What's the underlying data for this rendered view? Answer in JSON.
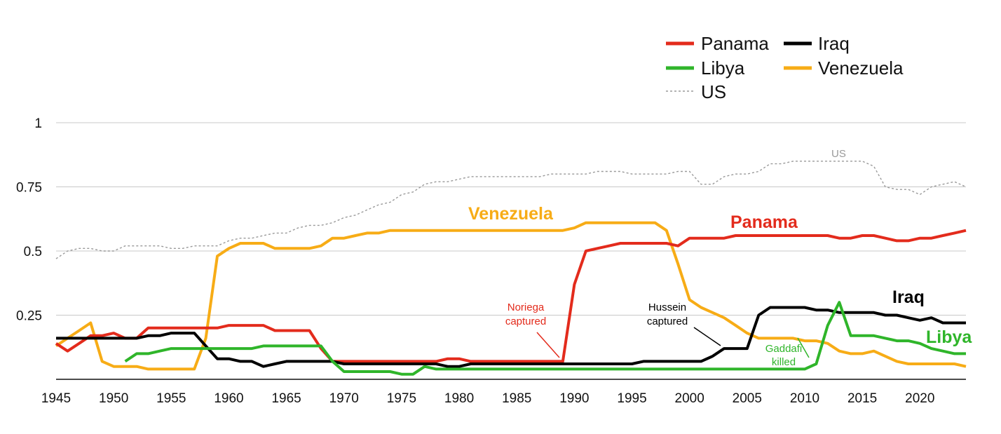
{
  "chart_data": {
    "type": "line",
    "x_ticks": [
      "1945",
      "1950",
      "1955",
      "1960",
      "1965",
      "1970",
      "1975",
      "1980",
      "1985",
      "1990",
      "1995",
      "2000",
      "2005",
      "2010",
      "2015",
      "2020"
    ],
    "y_ticks": [
      "1",
      "0.75",
      "0.5",
      "0.25"
    ],
    "xlim": [
      1945,
      2024
    ],
    "ylim": [
      0,
      1
    ],
    "grid": true,
    "legend_placement": "top-right",
    "colors": {
      "panama": "#e32b1c",
      "iraq": "#000000",
      "libya": "#2fb52a",
      "venezuela": "#f7ac16",
      "us": "#9a9a9a"
    },
    "legend": [
      {
        "key": "panama",
        "label": "Panama"
      },
      {
        "key": "iraq",
        "label": "Iraq"
      },
      {
        "key": "libya",
        "label": "Libya"
      },
      {
        "key": "venezuela",
        "label": "Venezuela"
      },
      {
        "key": "us",
        "label": "US"
      }
    ],
    "series": [
      {
        "key": "us",
        "name": "US",
        "dashed": true,
        "x": [
          1945,
          1946,
          1947,
          1948,
          1949,
          1950,
          1951,
          1952,
          1953,
          1954,
          1955,
          1956,
          1957,
          1958,
          1959,
          1960,
          1961,
          1962,
          1963,
          1964,
          1965,
          1966,
          1967,
          1968,
          1969,
          1970,
          1971,
          1972,
          1973,
          1974,
          1975,
          1976,
          1977,
          1978,
          1979,
          1980,
          1981,
          1982,
          1983,
          1984,
          1985,
          1986,
          1987,
          1988,
          1989,
          1990,
          1991,
          1992,
          1993,
          1994,
          1995,
          1996,
          1997,
          1998,
          1999,
          2000,
          2001,
          2002,
          2003,
          2004,
          2005,
          2006,
          2007,
          2008,
          2009,
          2010,
          2011,
          2012,
          2013,
          2014,
          2015,
          2016,
          2017,
          2018,
          2019,
          2020,
          2021,
          2022,
          2023,
          2024
        ],
        "y": [
          0.47,
          0.5,
          0.51,
          0.51,
          0.5,
          0.5,
          0.52,
          0.52,
          0.52,
          0.52,
          0.51,
          0.51,
          0.52,
          0.52,
          0.52,
          0.54,
          0.55,
          0.55,
          0.56,
          0.57,
          0.57,
          0.59,
          0.6,
          0.6,
          0.61,
          0.63,
          0.64,
          0.66,
          0.68,
          0.69,
          0.72,
          0.73,
          0.76,
          0.77,
          0.77,
          0.78,
          0.79,
          0.79,
          0.79,
          0.79,
          0.79,
          0.79,
          0.79,
          0.8,
          0.8,
          0.8,
          0.8,
          0.81,
          0.81,
          0.81,
          0.8,
          0.8,
          0.8,
          0.8,
          0.81,
          0.81,
          0.76,
          0.76,
          0.79,
          0.8,
          0.8,
          0.81,
          0.84,
          0.84,
          0.85,
          0.85,
          0.85,
          0.85,
          0.85,
          0.85,
          0.85,
          0.83,
          0.75,
          0.74,
          0.74,
          0.72,
          0.75,
          0.76,
          0.77,
          0.75
        ]
      },
      {
        "key": "venezuela",
        "name": "Venezuela",
        "x": [
          1945,
          1946,
          1947,
          1948,
          1949,
          1950,
          1951,
          1952,
          1953,
          1954,
          1955,
          1956,
          1957,
          1958,
          1959,
          1960,
          1961,
          1962,
          1963,
          1964,
          1965,
          1966,
          1967,
          1968,
          1969,
          1970,
          1971,
          1972,
          1973,
          1974,
          1975,
          1976,
          1977,
          1978,
          1979,
          1980,
          1981,
          1982,
          1983,
          1984,
          1985,
          1986,
          1987,
          1988,
          1989,
          1990,
          1991,
          1992,
          1993,
          1994,
          1995,
          1996,
          1997,
          1998,
          1999,
          2000,
          2001,
          2002,
          2003,
          2004,
          2005,
          2006,
          2007,
          2008,
          2009,
          2010,
          2011,
          2012,
          2013,
          2014,
          2015,
          2016,
          2017,
          2018,
          2019,
          2020,
          2021,
          2022,
          2023,
          2024
        ],
        "y": [
          0.13,
          0.16,
          0.19,
          0.22,
          0.07,
          0.05,
          0.05,
          0.05,
          0.04,
          0.04,
          0.04,
          0.04,
          0.04,
          0.16,
          0.48,
          0.51,
          0.53,
          0.53,
          0.53,
          0.51,
          0.51,
          0.51,
          0.51,
          0.52,
          0.55,
          0.55,
          0.56,
          0.57,
          0.57,
          0.58,
          0.58,
          0.58,
          0.58,
          0.58,
          0.58,
          0.58,
          0.58,
          0.58,
          0.58,
          0.58,
          0.58,
          0.58,
          0.58,
          0.58,
          0.58,
          0.59,
          0.61,
          0.61,
          0.61,
          0.61,
          0.61,
          0.61,
          0.61,
          0.58,
          0.45,
          0.31,
          0.28,
          0.26,
          0.24,
          0.21,
          0.18,
          0.16,
          0.16,
          0.16,
          0.16,
          0.15,
          0.15,
          0.14,
          0.11,
          0.1,
          0.1,
          0.11,
          0.09,
          0.07,
          0.06,
          0.06,
          0.06,
          0.06,
          0.06,
          0.05
        ]
      },
      {
        "key": "panama",
        "name": "Panama",
        "x": [
          1945,
          1946,
          1947,
          1948,
          1949,
          1950,
          1951,
          1952,
          1953,
          1954,
          1955,
          1956,
          1957,
          1958,
          1959,
          1960,
          1961,
          1962,
          1963,
          1964,
          1965,
          1966,
          1967,
          1968,
          1969,
          1970,
          1971,
          1972,
          1973,
          1974,
          1975,
          1976,
          1977,
          1978,
          1979,
          1980,
          1981,
          1982,
          1983,
          1984,
          1985,
          1986,
          1987,
          1988,
          1989,
          1990,
          1991,
          1992,
          1993,
          1994,
          1995,
          1996,
          1997,
          1998,
          1999,
          2000,
          2001,
          2002,
          2003,
          2004,
          2005,
          2006,
          2007,
          2008,
          2009,
          2010,
          2011,
          2012,
          2013,
          2014,
          2015,
          2016,
          2017,
          2018,
          2019,
          2020,
          2021,
          2022,
          2023,
          2024
        ],
        "y": [
          0.14,
          0.11,
          0.14,
          0.17,
          0.17,
          0.18,
          0.16,
          0.16,
          0.2,
          0.2,
          0.2,
          0.2,
          0.2,
          0.2,
          0.2,
          0.21,
          0.21,
          0.21,
          0.21,
          0.19,
          0.19,
          0.19,
          0.19,
          0.12,
          0.07,
          0.07,
          0.07,
          0.07,
          0.07,
          0.07,
          0.07,
          0.07,
          0.07,
          0.07,
          0.08,
          0.08,
          0.07,
          0.07,
          0.07,
          0.07,
          0.07,
          0.07,
          0.07,
          0.07,
          0.07,
          0.37,
          0.5,
          0.51,
          0.52,
          0.53,
          0.53,
          0.53,
          0.53,
          0.53,
          0.52,
          0.55,
          0.55,
          0.55,
          0.55,
          0.56,
          0.56,
          0.56,
          0.56,
          0.56,
          0.56,
          0.56,
          0.56,
          0.56,
          0.55,
          0.55,
          0.56,
          0.56,
          0.55,
          0.54,
          0.54,
          0.55,
          0.55,
          0.56,
          0.57,
          0.58
        ]
      },
      {
        "key": "iraq",
        "name": "Iraq",
        "x": [
          1945,
          1946,
          1947,
          1948,
          1949,
          1950,
          1951,
          1952,
          1953,
          1954,
          1955,
          1956,
          1957,
          1958,
          1959,
          1960,
          1961,
          1962,
          1963,
          1964,
          1965,
          1966,
          1967,
          1968,
          1969,
          1970,
          1971,
          1972,
          1973,
          1974,
          1975,
          1976,
          1977,
          1978,
          1979,
          1980,
          1981,
          1982,
          1983,
          1984,
          1985,
          1986,
          1987,
          1988,
          1989,
          1990,
          1991,
          1992,
          1993,
          1994,
          1995,
          1996,
          1997,
          1998,
          1999,
          2000,
          2001,
          2002,
          2003,
          2004,
          2005,
          2006,
          2007,
          2008,
          2009,
          2010,
          2011,
          2012,
          2013,
          2014,
          2015,
          2016,
          2017,
          2018,
          2019,
          2020,
          2021,
          2022,
          2023,
          2024
        ],
        "y": [
          0.16,
          0.16,
          0.16,
          0.16,
          0.16,
          0.16,
          0.16,
          0.16,
          0.17,
          0.17,
          0.18,
          0.18,
          0.18,
          0.13,
          0.08,
          0.08,
          0.07,
          0.07,
          0.05,
          0.06,
          0.07,
          0.07,
          0.07,
          0.07,
          0.07,
          0.06,
          0.06,
          0.06,
          0.06,
          0.06,
          0.06,
          0.06,
          0.06,
          0.06,
          0.05,
          0.05,
          0.06,
          0.06,
          0.06,
          0.06,
          0.06,
          0.06,
          0.06,
          0.06,
          0.06,
          0.06,
          0.06,
          0.06,
          0.06,
          0.06,
          0.06,
          0.07,
          0.07,
          0.07,
          0.07,
          0.07,
          0.07,
          0.09,
          0.12,
          0.12,
          0.12,
          0.25,
          0.28,
          0.28,
          0.28,
          0.28,
          0.27,
          0.27,
          0.26,
          0.26,
          0.26,
          0.26,
          0.25,
          0.25,
          0.24,
          0.23,
          0.24,
          0.22,
          0.22,
          0.22
        ]
      },
      {
        "key": "libya",
        "name": "Libya",
        "x": [
          1951,
          1952,
          1953,
          1954,
          1955,
          1956,
          1957,
          1958,
          1959,
          1960,
          1961,
          1962,
          1963,
          1964,
          1965,
          1966,
          1967,
          1968,
          1969,
          1970,
          1971,
          1972,
          1973,
          1974,
          1975,
          1976,
          1977,
          1978,
          1979,
          1980,
          1981,
          1982,
          1983,
          1984,
          1985,
          1986,
          1987,
          1988,
          1989,
          1990,
          1991,
          1992,
          1993,
          1994,
          1995,
          1996,
          1997,
          1998,
          1999,
          2000,
          2001,
          2002,
          2003,
          2004,
          2005,
          2006,
          2007,
          2008,
          2009,
          2010,
          2011,
          2012,
          2013,
          2014,
          2015,
          2016,
          2017,
          2018,
          2019,
          2020,
          2021,
          2022,
          2023,
          2024
        ],
        "y": [
          0.07,
          0.1,
          0.1,
          0.11,
          0.12,
          0.12,
          0.12,
          0.12,
          0.12,
          0.12,
          0.12,
          0.12,
          0.13,
          0.13,
          0.13,
          0.13,
          0.13,
          0.13,
          0.07,
          0.03,
          0.03,
          0.03,
          0.03,
          0.03,
          0.02,
          0.02,
          0.05,
          0.04,
          0.04,
          0.04,
          0.04,
          0.04,
          0.04,
          0.04,
          0.04,
          0.04,
          0.04,
          0.04,
          0.04,
          0.04,
          0.04,
          0.04,
          0.04,
          0.04,
          0.04,
          0.04,
          0.04,
          0.04,
          0.04,
          0.04,
          0.04,
          0.04,
          0.04,
          0.04,
          0.04,
          0.04,
          0.04,
          0.04,
          0.04,
          0.04,
          0.06,
          0.21,
          0.3,
          0.17,
          0.17,
          0.17,
          0.16,
          0.15,
          0.15,
          0.14,
          0.12,
          0.11,
          0.1,
          0.1
        ]
      }
    ],
    "series_labels": [
      {
        "key": "venezuela",
        "text": "Venezuela"
      },
      {
        "key": "panama",
        "text": "Panama"
      },
      {
        "key": "iraq",
        "text": "Iraq"
      },
      {
        "key": "libya",
        "text": "Libya"
      },
      {
        "key": "us",
        "text": "US"
      }
    ],
    "annotations": [
      {
        "key": "panama",
        "lines": [
          "Noriega",
          "captured"
        ]
      },
      {
        "key": "iraq",
        "lines": [
          "Hussein",
          "captured"
        ]
      },
      {
        "key": "libya",
        "lines": [
          "Gaddafi",
          "killed"
        ]
      }
    ]
  }
}
